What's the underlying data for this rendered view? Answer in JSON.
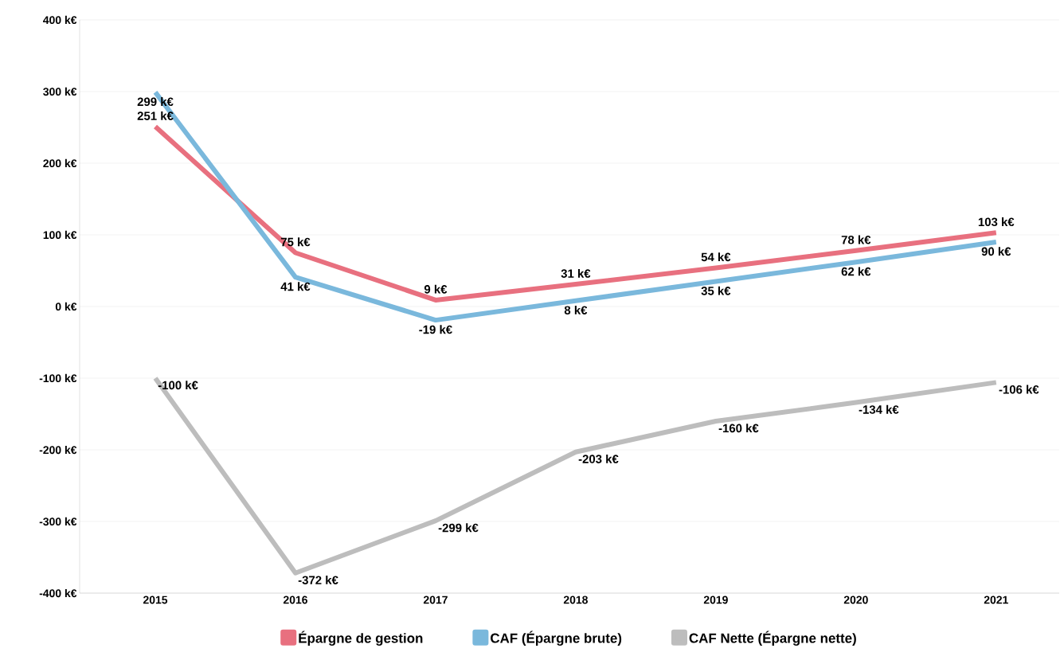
{
  "chart_data": {
    "type": "line",
    "categories": [
      "2015",
      "2016",
      "2017",
      "2018",
      "2019",
      "2020",
      "2021"
    ],
    "series": [
      {
        "name": "Épargne de gestion",
        "color": "#e8707f",
        "values": [
          251,
          75,
          9,
          31,
          54,
          78,
          103
        ],
        "value_labels": [
          "251 k€",
          "75 k€",
          "9 k€",
          "31 k€",
          "54 k€",
          "78 k€",
          "103 k€"
        ]
      },
      {
        "name": "CAF (Épargne brute)",
        "color": "#7ab8dc",
        "values": [
          299,
          41,
          -19,
          8,
          35,
          62,
          90
        ],
        "value_labels": [
          "299 k€",
          "41 k€",
          "-19 k€",
          "8 k€",
          "35 k€",
          "62 k€",
          "90 k€"
        ]
      },
      {
        "name": "CAF Nette (Épargne nette)",
        "color": "#bdbdbd",
        "values": [
          -100,
          -372,
          -299,
          -203,
          -160,
          -134,
          -106
        ],
        "value_labels": [
          "-100 k€",
          "-372 k€",
          "-299 k€",
          "-203 k€",
          "-160 k€",
          "-134 k€",
          "-106 k€"
        ]
      }
    ],
    "ylim": [
      -400,
      400
    ],
    "yticks": [
      {
        "value": -400,
        "label": "-400 k€"
      },
      {
        "value": -300,
        "label": "-300 k€"
      },
      {
        "value": -200,
        "label": "-200 k€"
      },
      {
        "value": -100,
        "label": "-100 k€"
      },
      {
        "value": 0,
        "label": "0 k€"
      },
      {
        "value": 100,
        "label": "100 k€"
      },
      {
        "value": 200,
        "label": "200 k€"
      },
      {
        "value": 300,
        "label": "300 k€"
      },
      {
        "value": 400,
        "label": "400 k€"
      }
    ],
    "grid": "y",
    "legend": "bottom",
    "marker": "none",
    "line_style": "solid"
  }
}
